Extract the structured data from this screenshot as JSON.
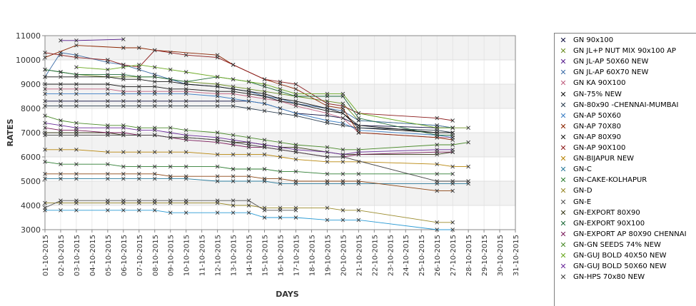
{
  "chart_data": {
    "type": "line",
    "xlabel": "DAYS",
    "ylabel": "RATES",
    "ylim": [
      3000,
      11000
    ],
    "yticks": [
      3000,
      4000,
      5000,
      6000,
      7000,
      8000,
      9000,
      10000,
      11000
    ],
    "x": [
      "01-10-2015",
      "02-10-2015",
      "03-10-2015",
      "04-10-2015",
      "05-10-2015",
      "06-10-2015",
      "07-10-2015",
      "08-10-2015",
      "09-10-2015",
      "10-10-2015",
      "11-10-2015",
      "12-10-2015",
      "13-10-2015",
      "14-10-2015",
      "15-10-2015",
      "16-10-2015",
      "17-10-2015",
      "18-10-2015",
      "19-10-2015",
      "20-10-2015",
      "21-10-2015",
      "22-10-2015",
      "23-10-2015",
      "24-10-2015",
      "25-10-2015",
      "26-10-2015",
      "27-10-2015",
      "28-10-2015",
      "29-10-2015",
      "30-10-2015",
      "31-10-2015"
    ],
    "grid": true,
    "band_colors": [
      "#f2f2f2",
      "#ffffff"
    ],
    "legend_position": "right",
    "series": [
      {
        "name": "GN 90x100",
        "color": "#0b0b3b",
        "values": [
          8300,
          8300,
          8300,
          null,
          8300,
          8300,
          8300,
          8300,
          8300,
          8300,
          null,
          8300,
          8300,
          8300,
          8200,
          8000,
          7800,
          null,
          7700,
          7600,
          7300,
          null,
          null,
          null,
          null,
          7200,
          7200,
          null,
          null,
          null,
          null
        ]
      },
      {
        "name": "GN JL+P NUT MIX 90x100 AP",
        "color": "#6b8e23",
        "values": [
          9600,
          9500,
          9400,
          null,
          9300,
          9300,
          9300,
          9300,
          9200,
          9100,
          null,
          9000,
          8900,
          8800,
          8700,
          8600,
          8500,
          null,
          8300,
          8200,
          7500,
          null,
          null,
          null,
          null,
          7300,
          7200,
          7200,
          null,
          null,
          null
        ]
      },
      {
        "name": "GN JL-AP 50X60 NEW",
        "color": "#551a8b",
        "values": [
          null,
          10800,
          10800,
          null,
          null,
          10850,
          null,
          null,
          null,
          null,
          null,
          null,
          null,
          null,
          null,
          null,
          null,
          null,
          null,
          null,
          null,
          null,
          null,
          null,
          null,
          null,
          null,
          null,
          null,
          null,
          null
        ]
      },
      {
        "name": "GN JL-AP 60X70 NEW",
        "color": "#3e6ea8",
        "values": [
          9300,
          10300,
          10200,
          null,
          9900,
          9800,
          9600,
          9400,
          9200,
          9000,
          null,
          8900,
          8800,
          8700,
          8500,
          8400,
          8200,
          null,
          8000,
          7900,
          7500,
          null,
          null,
          null,
          null,
          7300,
          7200,
          null,
          null,
          null,
          null
        ]
      },
      {
        "name": "GN KA 90X100",
        "color": "#c06080",
        "values": [
          8800,
          8800,
          8800,
          null,
          8800,
          8700,
          8700,
          8700,
          8700,
          8700,
          null,
          8600,
          8600,
          8500,
          8400,
          8300,
          8100,
          null,
          7800,
          7600,
          7000,
          null,
          null,
          null,
          null,
          6800,
          6800,
          null,
          null,
          null,
          null
        ]
      },
      {
        "name": "GN-75% NEW",
        "color": "#111111",
        "values": [
          9300,
          9300,
          9300,
          null,
          9300,
          9200,
          9200,
          9100,
          9100,
          9000,
          null,
          8900,
          8800,
          8700,
          8600,
          8400,
          8300,
          null,
          8000,
          7800,
          7200,
          null,
          null,
          null,
          null,
          7000,
          7000,
          null,
          null,
          null,
          null
        ]
      },
      {
        "name": "GN-80x90 -CHENNAI-MUMBAI",
        "color": "#2c3e50",
        "values": [
          8100,
          8100,
          8100,
          null,
          8100,
          8100,
          8100,
          8100,
          8100,
          8100,
          null,
          8100,
          8100,
          8000,
          7900,
          7800,
          7700,
          null,
          7400,
          7300,
          7200,
          null,
          null,
          null,
          null,
          7100,
          7000,
          null,
          null,
          null,
          null
        ]
      },
      {
        "name": "GN-AP 50X60",
        "color": "#3b7ec4",
        "values": [
          8600,
          8600,
          8600,
          null,
          8600,
          8600,
          8600,
          8600,
          8600,
          8600,
          null,
          8500,
          8400,
          8300,
          8200,
          8000,
          7800,
          null,
          7500,
          7400,
          7100,
          null,
          null,
          null,
          null,
          6900,
          6800,
          null,
          null,
          null,
          null
        ]
      },
      {
        "name": "GN-AP 70X80",
        "color": "#8b2500",
        "values": [
          10100,
          null,
          10600,
          null,
          null,
          10500,
          10500,
          10400,
          null,
          null,
          null,
          10200,
          9800,
          null,
          9200,
          9000,
          8800,
          null,
          8100,
          8000,
          7000,
          null,
          null,
          null,
          null,
          6800,
          6700,
          null,
          null,
          null,
          null
        ]
      },
      {
        "name": "GN-AP 80X90",
        "color": "#1a1a1a",
        "values": [
          9000,
          9000,
          9000,
          null,
          9000,
          8900,
          8900,
          8900,
          8800,
          8800,
          null,
          8700,
          8700,
          8600,
          8500,
          8300,
          8200,
          null,
          7900,
          7800,
          7300,
          null,
          null,
          null,
          null,
          7000,
          7000,
          null,
          null,
          null,
          null
        ]
      },
      {
        "name": "GN-AP 90X100",
        "color": "#8b1a1a",
        "values": [
          10300,
          10200,
          10100,
          null,
          10000,
          9800,
          9700,
          10400,
          10300,
          10200,
          null,
          10100,
          9800,
          null,
          9200,
          9100,
          9000,
          null,
          8200,
          8100,
          7800,
          null,
          null,
          null,
          null,
          7600,
          7500,
          null,
          null,
          null,
          null
        ]
      },
      {
        "name": "GN-BIJAPUR NEW",
        "color": "#b8860b",
        "values": [
          6300,
          6300,
          6300,
          null,
          6200,
          6200,
          6200,
          6200,
          6200,
          6200,
          null,
          6100,
          6100,
          6100,
          6100,
          6000,
          5900,
          null,
          5800,
          5800,
          5800,
          null,
          null,
          null,
          null,
          5700,
          5600,
          5600,
          null,
          null,
          null
        ]
      },
      {
        "name": "GN-C",
        "color": "#2a7a9a",
        "values": [
          5100,
          5100,
          5100,
          null,
          5100,
          5100,
          5100,
          5100,
          5100,
          5100,
          null,
          5000,
          5000,
          5000,
          5000,
          4900,
          4900,
          null,
          4900,
          4900,
          4900,
          null,
          null,
          null,
          null,
          4900,
          4900,
          4900,
          null,
          null,
          null
        ]
      },
      {
        "name": "GN-CAKE-KOLHAPUR",
        "color": "#2e7d32",
        "values": [
          5800,
          5700,
          5700,
          null,
          5700,
          5600,
          5600,
          5600,
          5600,
          5600,
          null,
          5600,
          5500,
          5500,
          5500,
          5400,
          5400,
          null,
          5300,
          5300,
          5300,
          null,
          null,
          null,
          null,
          5300,
          5300,
          null,
          null,
          null,
          null
        ]
      },
      {
        "name": "GN-D",
        "color": "#9a8a2a",
        "values": [
          4100,
          4100,
          4100,
          null,
          4100,
          4100,
          4100,
          4100,
          4100,
          4100,
          null,
          4100,
          4000,
          4000,
          3900,
          3900,
          3900,
          null,
          3900,
          3800,
          3800,
          null,
          null,
          null,
          null,
          3300,
          3300,
          null,
          null,
          null,
          null
        ]
      },
      {
        "name": "GN-E",
        "color": "#555555",
        "values": [
          3900,
          4200,
          4200,
          null,
          4200,
          4200,
          4200,
          4200,
          4200,
          4200,
          null,
          4200,
          4200,
          4200,
          3800,
          3800,
          3800,
          null,
          null,
          null,
          null,
          null,
          null,
          null,
          null,
          null,
          null,
          null,
          null,
          null,
          null
        ]
      },
      {
        "name": "GN-EXPORT 80X90",
        "color": "#3a3a1a",
        "values": [
          7000,
          7000,
          7000,
          null,
          7000,
          6900,
          6900,
          6900,
          6800,
          6800,
          null,
          6700,
          6600,
          6600,
          6500,
          6400,
          6400,
          null,
          6200,
          6100,
          6100,
          null,
          null,
          null,
          null,
          6100,
          6200,
          null,
          null,
          null,
          null
        ]
      },
      {
        "name": "GN-EXPORT 90X100",
        "color": "#1f6b3a",
        "values": [
          9600,
          9500,
          9400,
          null,
          9400,
          9400,
          9300,
          9300,
          9200,
          9100,
          null,
          9300,
          9200,
          9100,
          8900,
          8700,
          8500,
          null,
          8500,
          8500,
          7600,
          null,
          null,
          null,
          null,
          6900,
          6900,
          null,
          null,
          null,
          null
        ]
      },
      {
        "name": "GN-EXPORT AP 80X90 CHENNAI",
        "color": "#7a1a5a",
        "values": [
          7200,
          7100,
          7100,
          null,
          7000,
          7000,
          6900,
          6900,
          6800,
          6700,
          null,
          6600,
          6500,
          6400,
          6400,
          6300,
          6200,
          null,
          6000,
          6000,
          6100,
          null,
          null,
          null,
          null,
          6200,
          6200,
          null,
          null,
          null,
          null
        ]
      },
      {
        "name": "GN-GN SEEDS 74% NEW",
        "color": "#4a8a2a",
        "values": [
          7700,
          7500,
          7400,
          null,
          7300,
          7300,
          7200,
          7200,
          7200,
          7100,
          null,
          7000,
          6900,
          6800,
          6700,
          6600,
          6500,
          null,
          6400,
          6300,
          6300,
          null,
          null,
          null,
          null,
          6500,
          6500,
          6600,
          null,
          null,
          null
        ]
      },
      {
        "name": "GN-GUJ BOLD 40X50 NEW",
        "color": "#6aa820",
        "values": [
          null,
          null,
          9700,
          null,
          9600,
          9700,
          9800,
          9700,
          9600,
          9500,
          null,
          9300,
          9200,
          9100,
          9000,
          8800,
          8600,
          null,
          8600,
          8600,
          7800,
          null,
          null,
          null,
          null,
          7200,
          7200,
          null,
          null,
          null,
          null
        ]
      },
      {
        "name": "GN-GUJ BOLD 50X60 NEW",
        "color": "#6a2a9a",
        "values": [
          7400,
          7300,
          7200,
          null,
          7200,
          7200,
          7100,
          7100,
          7000,
          6900,
          null,
          6800,
          6700,
          6600,
          6500,
          6400,
          6300,
          null,
          6200,
          6100,
          6200,
          null,
          null,
          null,
          null,
          6300,
          6300,
          null,
          null,
          null,
          null
        ]
      },
      {
        "name": "GN-HPS  70x80 NEW",
        "color": "#444444",
        "values": [
          6900,
          6900,
          6900,
          null,
          6900,
          6900,
          6900,
          6900,
          6800,
          6800,
          null,
          6700,
          6600,
          6500,
          6400,
          6300,
          6200,
          null,
          6000,
          6000,
          null,
          null,
          null,
          null,
          null,
          5000,
          5000,
          5000,
          null,
          null,
          null
        ]
      },
      {
        "name": "",
        "color": "#8b4513",
        "values": [
          5300,
          5300,
          5300,
          null,
          5300,
          5300,
          5300,
          5300,
          5200,
          5200,
          null,
          5200,
          5200,
          5200,
          5100,
          5100,
          5000,
          null,
          5000,
          5000,
          5000,
          null,
          null,
          null,
          null,
          4600,
          4600,
          null,
          null,
          null,
          null
        ]
      },
      {
        "name": "",
        "color": "#2a9ad4",
        "values": [
          3800,
          3800,
          3800,
          null,
          3800,
          3800,
          3800,
          3800,
          3700,
          3700,
          null,
          3700,
          3700,
          3700,
          3500,
          3500,
          3500,
          null,
          3400,
          3400,
          3400,
          null,
          null,
          null,
          null,
          3000,
          3000,
          null,
          null,
          null,
          null
        ]
      }
    ]
  }
}
